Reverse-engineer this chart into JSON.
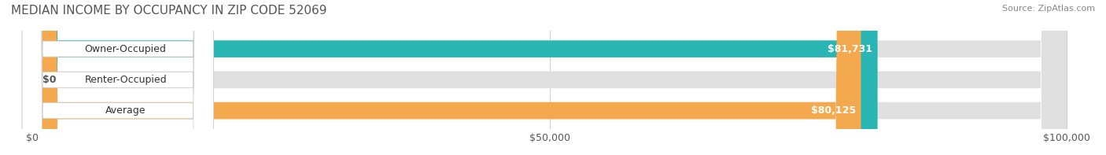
{
  "title": "MEDIAN INCOME BY OCCUPANCY IN ZIP CODE 52069",
  "source": "Source: ZipAtlas.com",
  "categories": [
    "Owner-Occupied",
    "Renter-Occupied",
    "Average"
  ],
  "values": [
    81731,
    0,
    80125
  ],
  "labels": [
    "$81,731",
    "$0",
    "$80,125"
  ],
  "bar_colors": [
    "#2ab5b5",
    "#c9a8d4",
    "#f5a94e"
  ],
  "bar_background": "#e8e8e8",
  "xlim": [
    0,
    100000
  ],
  "xticks": [
    0,
    50000,
    100000
  ],
  "xtick_labels": [
    "$0",
    "$50,000",
    "$100,000"
  ],
  "title_fontsize": 11,
  "source_fontsize": 8,
  "label_fontsize": 9,
  "tick_fontsize": 9,
  "fig_bg": "#ffffff",
  "bar_height": 0.55,
  "bar_bg_color": "#e0e0e0"
}
